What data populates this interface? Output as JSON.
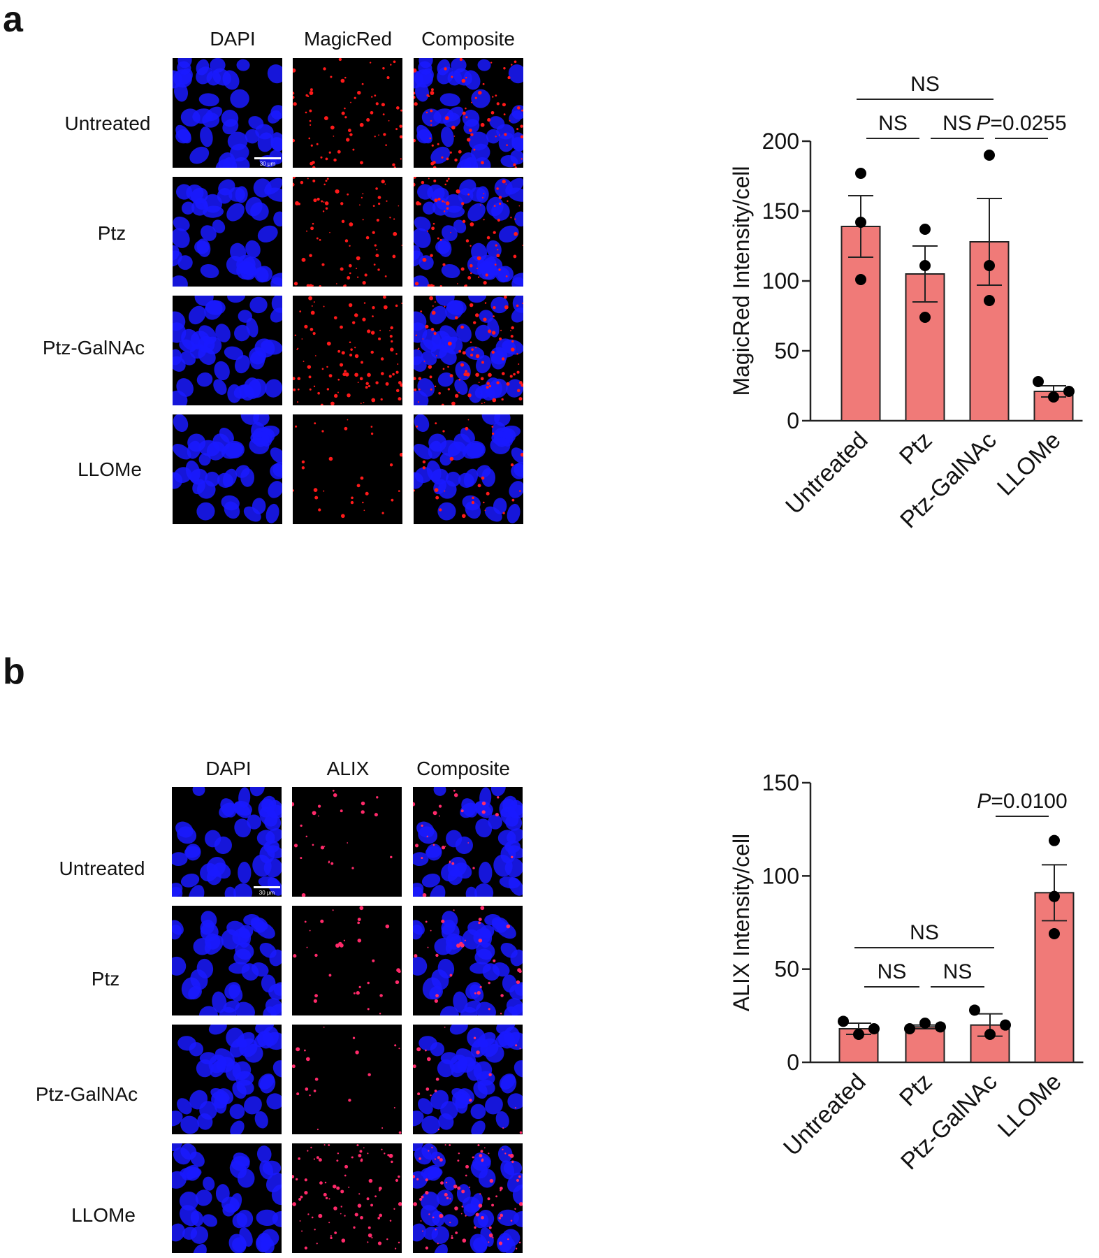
{
  "figure": {
    "panels": [
      {
        "letter": "a",
        "column_headers": [
          "DAPI",
          "MagicRed",
          "Composite"
        ],
        "row_headers": [
          "Untreated",
          "Ptz",
          "Ptz-GalNAc",
          "LLOMe"
        ],
        "scale_bar_label": "30 μm"
      },
      {
        "letter": "b",
        "column_headers": [
          "DAPI",
          "ALIX",
          "Composite"
        ],
        "row_headers": [
          "Untreated",
          "Ptz",
          "Ptz-GalNAc",
          "LLOMe"
        ],
        "scale_bar_label": "30 μm"
      }
    ]
  },
  "colors": {
    "bar_fill": "#f07a78",
    "bar_stroke": "#222222",
    "point": "#000000",
    "nucleus": "#1a1aff",
    "puncta": "#ff1a1a",
    "alix_puncta": "#ff2a6a"
  },
  "chart_data": [
    {
      "type": "bar",
      "categories": [
        "Untreated",
        "Ptz",
        "Ptz-GalNAc",
        "LLOMe"
      ],
      "values": [
        139,
        105,
        128,
        21
      ],
      "error": [
        22,
        20,
        31,
        4
      ],
      "points": [
        [
          177,
          142,
          101
        ],
        [
          137,
          111,
          74
        ],
        [
          190,
          111,
          86
        ],
        [
          28,
          17,
          21
        ]
      ],
      "ylabel": "MagicRed Intensity/cell",
      "xlabel": "",
      "title": "",
      "ylim": [
        0,
        200
      ],
      "yticks": [
        0,
        50,
        100,
        150,
        200
      ],
      "comparisons": [
        {
          "from": 0,
          "to": 2,
          "label": "NS",
          "italic_prefix": ""
        },
        {
          "from": 0,
          "to": 1,
          "label": "NS",
          "italic_prefix": ""
        },
        {
          "from": 1,
          "to": 2,
          "label": "NS",
          "italic_prefix": ""
        },
        {
          "from": 2,
          "to": 3,
          "label": "=0.0255",
          "italic_prefix": "P"
        }
      ],
      "grid": false
    },
    {
      "type": "bar",
      "categories": [
        "Untreated",
        "Ptz",
        "Ptz-GalNAc",
        "LLOMe"
      ],
      "values": [
        18,
        19,
        20,
        91
      ],
      "error": [
        3,
        1,
        6,
        15
      ],
      "points": [
        [
          22,
          15,
          18
        ],
        [
          18,
          21,
          19
        ],
        [
          28,
          15,
          20
        ],
        [
          119,
          89,
          69
        ]
      ],
      "ylabel": "ALIX Intensity/cell",
      "xlabel": "",
      "title": "",
      "ylim": [
        0,
        150
      ],
      "yticks": [
        0,
        50,
        100,
        150
      ],
      "comparisons": [
        {
          "from": 0,
          "to": 2,
          "label": "NS",
          "italic_prefix": ""
        },
        {
          "from": 0,
          "to": 1,
          "label": "NS",
          "italic_prefix": ""
        },
        {
          "from": 1,
          "to": 2,
          "label": "NS",
          "italic_prefix": ""
        },
        {
          "from": 2,
          "to": 3,
          "label": "=0.0100",
          "italic_prefix": "P"
        }
      ],
      "grid": false
    }
  ]
}
